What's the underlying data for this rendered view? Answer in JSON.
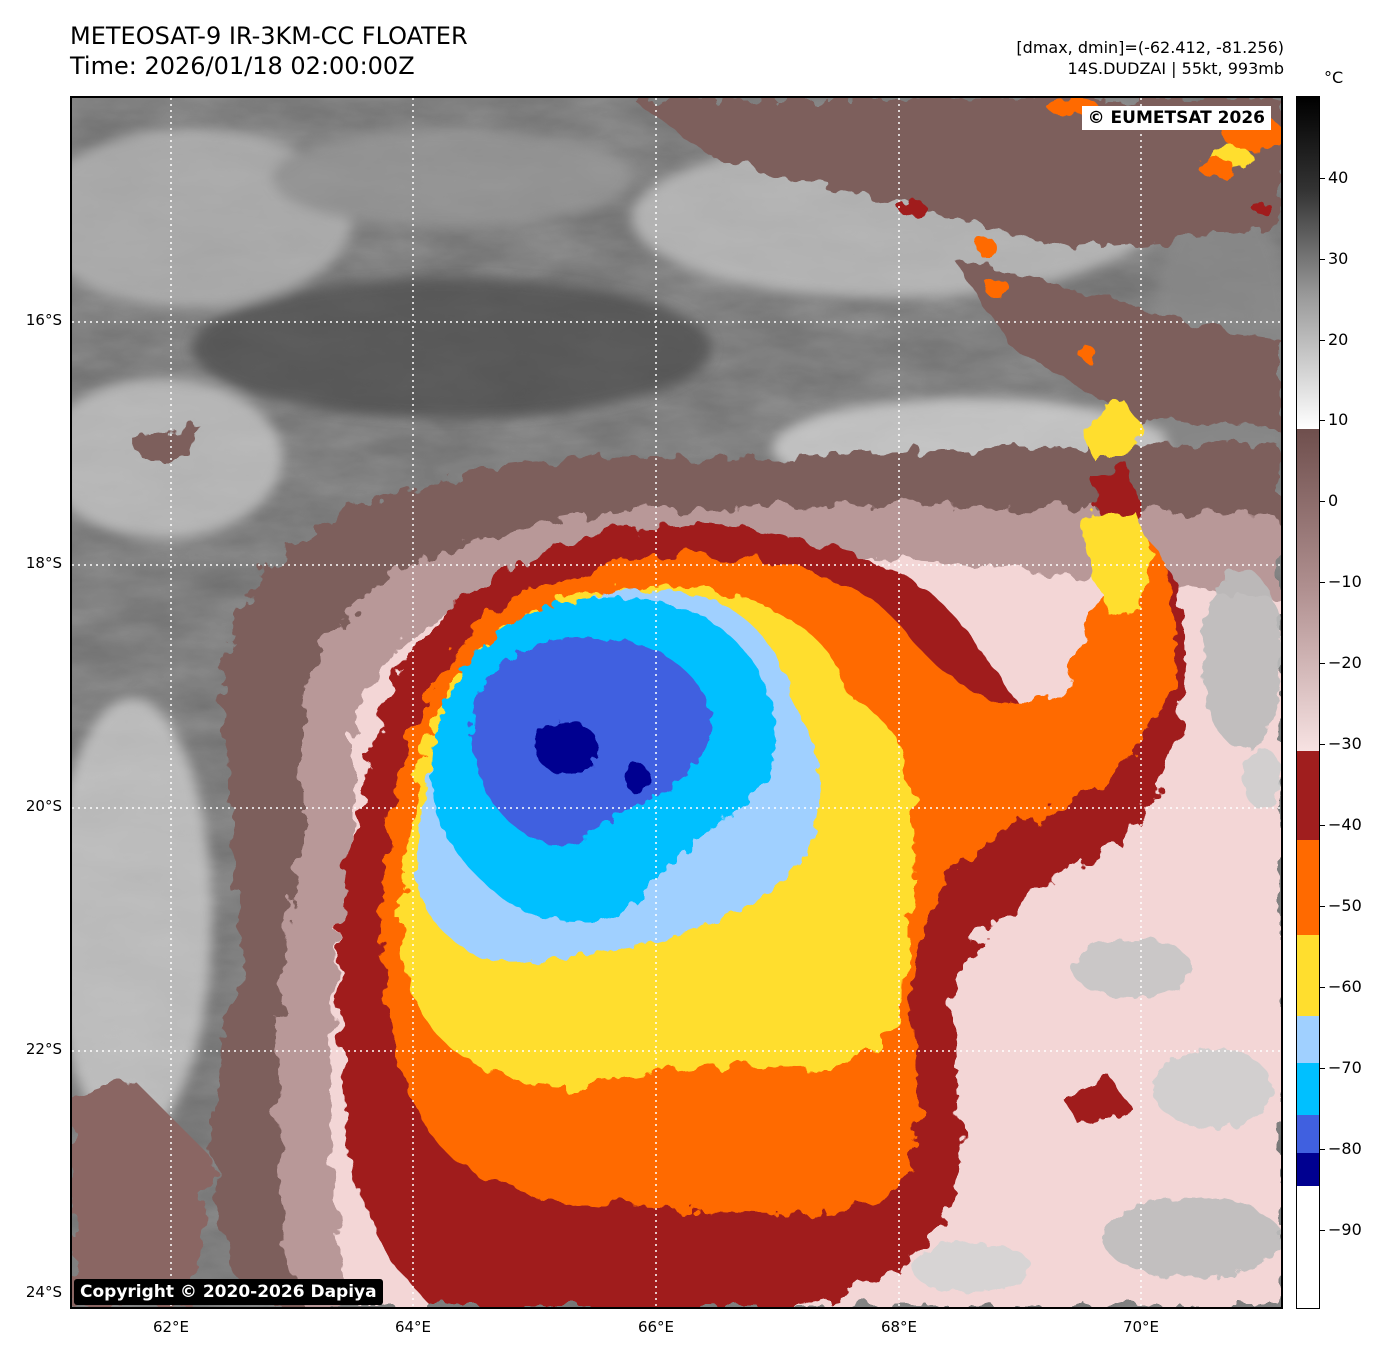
{
  "header": {
    "title_line1": "METEOSAT-9 IR-3KM-CC FLOATER",
    "title_line2": "Time: 2026/01/18 02:00:00Z",
    "info_line1": "[dmax, dmin]=(-62.412, -81.256)",
    "info_line2": "14S.DUDZAI | 55kt, 993mb"
  },
  "map": {
    "credit_top": "© EUMETSAT 2026",
    "credit_bottom": "Copyright © 2020-2026 Dapiya",
    "lat_labels": [
      "16°S",
      "18°S",
      "20°S",
      "22°S",
      "24°S"
    ],
    "lon_labels": [
      "62°E",
      "64°E",
      "66°E",
      "68°E",
      "70°E"
    ],
    "storm_name": "DUDZAI",
    "storm_id": "14S"
  },
  "colorbar": {
    "unit": "°C",
    "tick_labels": [
      "40",
      "30",
      "20",
      "10",
      "0",
      "−10",
      "−20",
      "−30",
      "−40",
      "−50",
      "−60",
      "−70",
      "−80",
      "−90"
    ],
    "range": [
      -100,
      50
    ],
    "colors": {
      "warm_top": "#000000",
      "gray": "#808080",
      "white": "#ffffff",
      "brown": "#7a5a58",
      "pink": "#f5d8d8",
      "dark_red": "#a01e1e",
      "orange": "#ff6a00",
      "yellow": "#ffde2e",
      "light_blue": "#a0d0ff",
      "cyan": "#00c0ff",
      "royal_blue": "#4060e0",
      "navy": "#000090",
      "cold_bottom": "#ffffff"
    }
  }
}
